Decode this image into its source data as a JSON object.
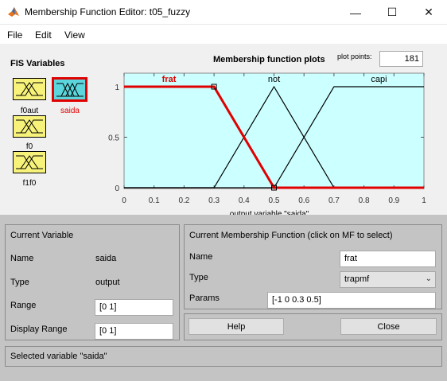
{
  "window": {
    "title": "Membership Function Editor: t05_fuzzy",
    "minimize_glyph": "—",
    "maximize_glyph": "☐",
    "close_glyph": "✕"
  },
  "menu": {
    "items": [
      "File",
      "Edit",
      "View"
    ]
  },
  "fis_variables": {
    "title": "FIS Variables",
    "items": [
      {
        "label": "f0aut",
        "selected": false
      },
      {
        "label": "saida",
        "selected": true
      },
      {
        "label": "f0",
        "selected": false
      },
      {
        "label": "f1f0",
        "selected": false
      }
    ]
  },
  "plot": {
    "title": "Membership function plots",
    "plot_points_label": "plot points:",
    "plot_points_value": "181"
  },
  "chart_data": {
    "type": "line",
    "xlabel": "output variable \"saida\"",
    "xlim": [
      0,
      1
    ],
    "ylim": [
      0,
      1
    ],
    "xticks": [
      "0",
      "0.1",
      "0.2",
      "0.3",
      "0.4",
      "0.5",
      "0.6",
      "0.7",
      "0.8",
      "0.9",
      "1"
    ],
    "yticks": [
      "0",
      "0.5",
      "1"
    ],
    "series": [
      {
        "name": "frat",
        "selected": true,
        "color": "#e00000",
        "x": [
          0,
          0.3,
          0.5,
          1
        ],
        "y": [
          1,
          1,
          0,
          0
        ]
      },
      {
        "name": "not",
        "selected": false,
        "color": "#000000",
        "x": [
          0,
          0.3,
          0.5,
          0.7,
          1
        ],
        "y": [
          0,
          0,
          1,
          0,
          0
        ]
      },
      {
        "name": "capi",
        "selected": false,
        "color": "#000000",
        "x": [
          0,
          0.5,
          0.7,
          1
        ],
        "y": [
          0,
          0,
          1,
          1
        ]
      }
    ],
    "colors": {
      "background": "#ccffff",
      "selected_label": "#e00000"
    }
  },
  "current_variable": {
    "title": "Current Variable",
    "name_label": "Name",
    "name_value": "saida",
    "type_label": "Type",
    "type_value": "output",
    "range_label": "Range",
    "range_value": "[0 1]",
    "display_range_label": "Display Range",
    "display_range_value": "[0 1]"
  },
  "current_mf": {
    "title": "Current Membership Function (click on MF to select)",
    "name_label": "Name",
    "name_value": "frat",
    "type_label": "Type",
    "type_value": "trapmf",
    "params_label": "Params",
    "params_value": "[-1 0 0.3 0.5]"
  },
  "buttons": {
    "help": "Help",
    "close": "Close"
  },
  "status": "Selected variable \"saida\""
}
